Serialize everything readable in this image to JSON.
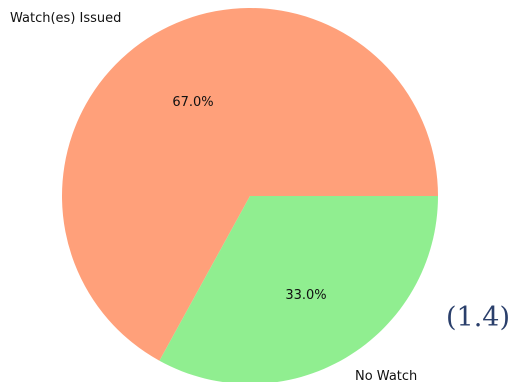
{
  "chart_data": {
    "type": "pie",
    "categories": [
      "Watch(es) Issued",
      "No Watch"
    ],
    "values": [
      67.0,
      33.0
    ],
    "percent_labels": [
      "67.0%",
      "33.0%"
    ],
    "colors": [
      "#FFA07A",
      "#90EE90"
    ],
    "start_angle_deg": 0,
    "direction": "counterclockwise"
  },
  "equation_number": "(1.4)"
}
